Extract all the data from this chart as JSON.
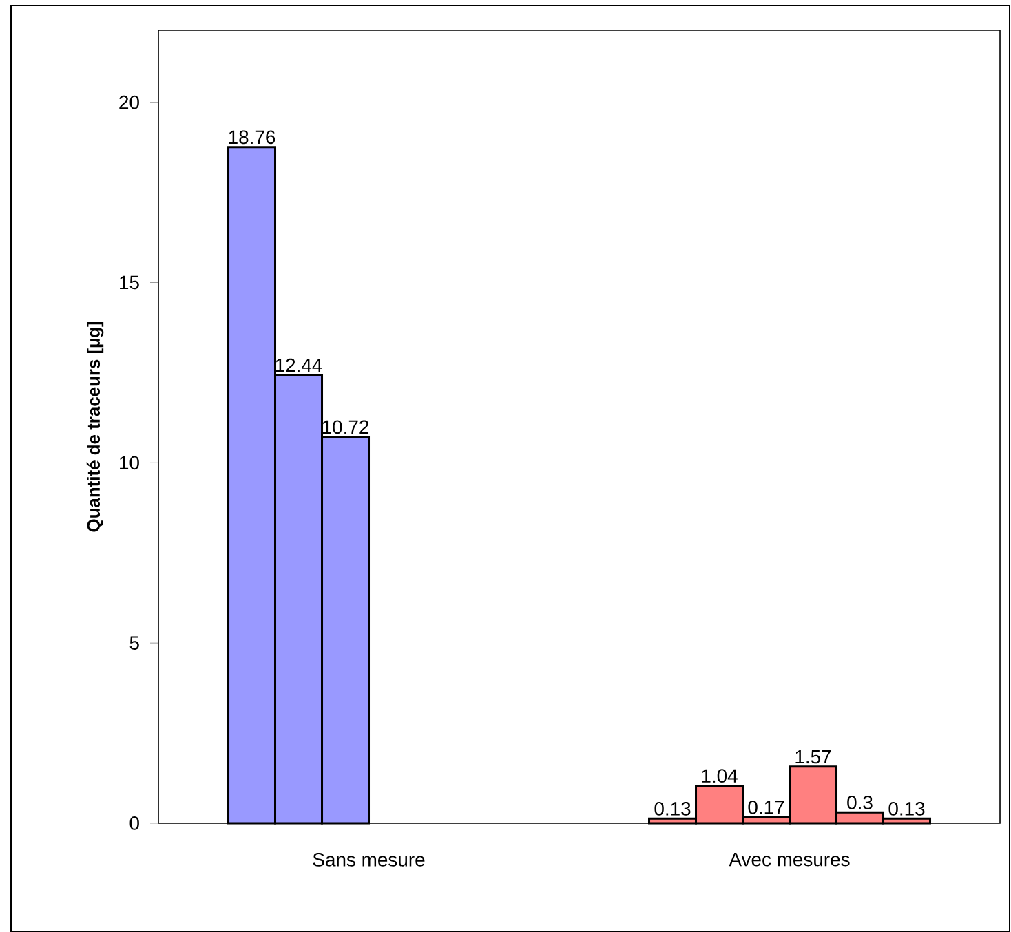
{
  "chart_data": {
    "type": "bar",
    "ylabel": "Quantité de traceurs [µg]",
    "categories": [
      "Sans mesure",
      "Avec mesures"
    ],
    "series": [
      {
        "colors": [
          "#9999ff",
          "#ff8080"
        ],
        "values": [
          18.76,
          0.13
        ]
      },
      {
        "colors": [
          "#9999ff",
          "#ff8080"
        ],
        "values": [
          12.44,
          1.04
        ]
      },
      {
        "colors": [
          "#9999ff",
          "#ff8080"
        ],
        "values": [
          10.72,
          0.17
        ]
      },
      {
        "colors": [
          "#9999ff",
          "#ff8080"
        ],
        "values": [
          null,
          1.57
        ]
      },
      {
        "colors": [
          "#9999ff",
          "#ff8080"
        ],
        "values": [
          null,
          0.3
        ]
      },
      {
        "colors": [
          "#9999ff",
          "#ff8080"
        ],
        "values": [
          null,
          0.13
        ]
      }
    ],
    "ylim": [
      0,
      22
    ],
    "yticks": [
      0,
      5,
      10,
      15,
      20
    ],
    "data_labels": true,
    "grid": false
  }
}
